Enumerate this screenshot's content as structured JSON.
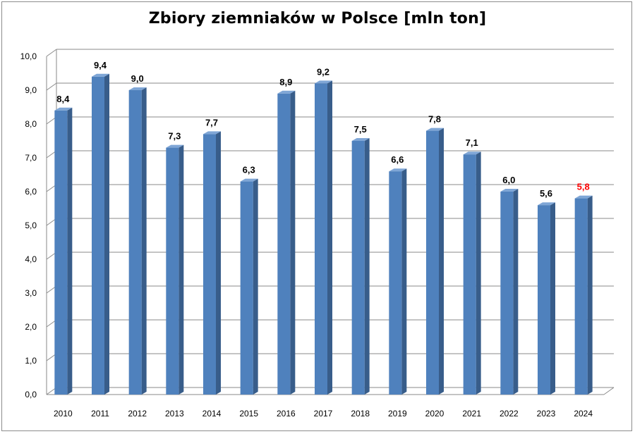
{
  "chart_data": {
    "type": "bar",
    "title": "Zbiory ziemniaków w Polsce [mln ton]",
    "xlabel": "",
    "ylabel": "",
    "categories": [
      "2010",
      "2011",
      "2012",
      "2013",
      "2014",
      "2015",
      "2016",
      "2017",
      "2018",
      "2019",
      "2020",
      "2021",
      "2022",
      "2023",
      "2024"
    ],
    "values": [
      8.4,
      9.4,
      9.0,
      7.3,
      7.7,
      6.3,
      8.9,
      9.2,
      7.5,
      6.6,
      7.8,
      7.1,
      6.0,
      5.6,
      5.8
    ],
    "data_labels": [
      "8,4",
      "9,4",
      "9,0",
      "7,3",
      "7,7",
      "6,3",
      "8,9",
      "9,2",
      "7,5",
      "6,6",
      "7,8",
      "7,1",
      "6,0",
      "5,6",
      "5,8"
    ],
    "y_tick_labels": [
      "0,0",
      "1,0",
      "2,0",
      "3,0",
      "4,0",
      "5,0",
      "6,0",
      "7,0",
      "8,0",
      "9,0",
      "10,0"
    ],
    "ylim": [
      0,
      10
    ],
    "grid": true,
    "legend": "none",
    "colors": {
      "bar_front": "#4f81bd",
      "bar_side": "#385d8a",
      "bar_top": "#7fa6d6",
      "label_default": "#000000",
      "label_highlight": "#ff0000",
      "gridline": "#8a8a8a"
    },
    "highlighted_categories": [
      "2024"
    ]
  }
}
